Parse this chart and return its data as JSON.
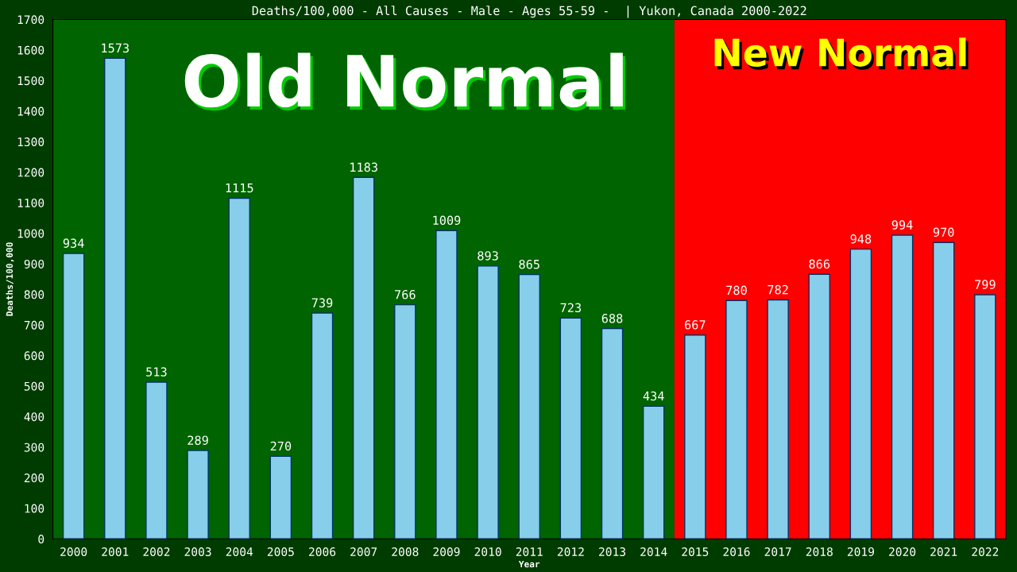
{
  "chart_data": {
    "type": "bar",
    "title": "Deaths/100,000 - All Causes - Male - Ages 55-59 -  | Yukon, Canada 2000-2022",
    "xlabel": "Year",
    "ylabel": "Deaths/100,000",
    "categories": [
      "2000",
      "2001",
      "2002",
      "2003",
      "2004",
      "2005",
      "2006",
      "2007",
      "2008",
      "2009",
      "2010",
      "2011",
      "2012",
      "2013",
      "2014",
      "2015",
      "2016",
      "2017",
      "2018",
      "2019",
      "2020",
      "2021",
      "2022"
    ],
    "values": [
      934,
      1573,
      513,
      289,
      1115,
      270,
      739,
      1183,
      766,
      1009,
      893,
      865,
      723,
      688,
      434,
      667,
      780,
      782,
      866,
      948,
      994,
      970,
      799
    ],
    "color": "#87ceeb",
    "data_labels": true,
    "ylim": [
      0,
      1700
    ],
    "yticks": [
      0,
      100,
      200,
      300,
      400,
      500,
      600,
      700,
      800,
      900,
      1000,
      1100,
      1200,
      1300,
      1400,
      1500,
      1600,
      1700
    ],
    "grid": false,
    "bands": [
      {
        "axis": "x",
        "from": "2000",
        "to": "2014",
        "label": "Old Normal",
        "color": "#006400"
      },
      {
        "axis": "x",
        "from": "2015",
        "to": "2022",
        "label": "New Normal",
        "color": "#ff0000"
      }
    ]
  }
}
